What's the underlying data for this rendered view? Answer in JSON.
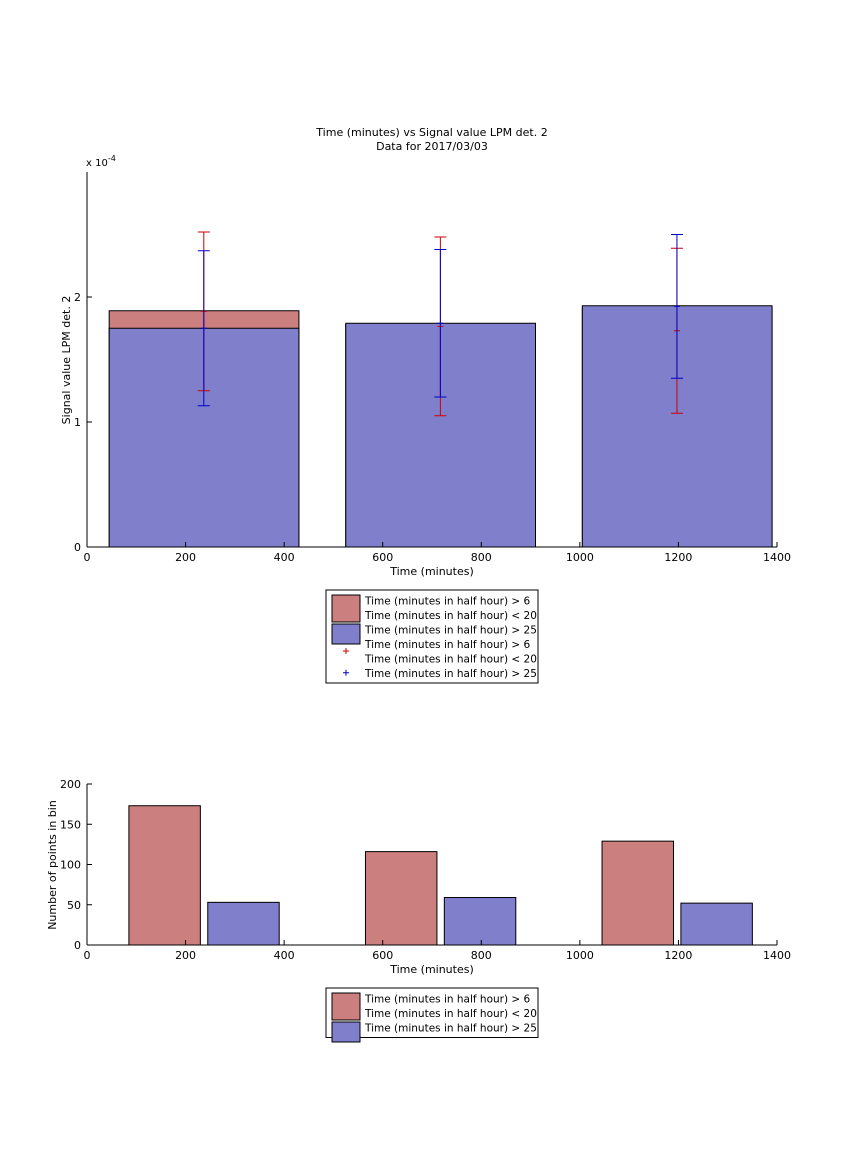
{
  "chart_data": [
    {
      "type": "bar",
      "title": "Time (minutes) vs Signal value LPM det. 2",
      "subtitle": "Data for 2017/03/03",
      "xlabel": "Time (minutes)",
      "ylabel": "Signal value LPM det. 2",
      "y_exponent_label": "x 10",
      "y_exponent_power": "-4",
      "xlim": [
        0,
        1400
      ],
      "ylim": [
        0,
        3
      ],
      "x_ticks": [
        "0",
        "200",
        "400",
        "600",
        "800",
        "1000",
        "1200",
        "1400"
      ],
      "y_ticks": [
        "0",
        "1",
        "2"
      ],
      "grid": false,
      "legend_placement": "below",
      "series": [
        {
          "name": "Time (minutes in half hour) > 6 Time (minutes in half hour) < 20",
          "color": "#cc7f7f",
          "bins": [
            {
              "x_start": 45,
              "x_end": 430,
              "value": 1.89
            },
            {
              "x_start": 525,
              "x_end": 910,
              "value": 1.78
            },
            {
              "x_start": 1005,
              "x_end": 1390,
              "value": 1.91
            }
          ]
        },
        {
          "name": "Time (minutes in half hour) > 25",
          "color": "#7f7fcc",
          "bins": [
            {
              "x_start": 45,
              "x_end": 430,
              "value": 1.75
            },
            {
              "x_start": 525,
              "x_end": 910,
              "value": 1.79
            },
            {
              "x_start": 1005,
              "x_end": 1390,
              "value": 1.93
            }
          ]
        }
      ],
      "errorbars": [
        {
          "name": "Time (minutes in half hour) > 6 Time (minutes in half hour) < 20",
          "color": "#cc0000",
          "points": [
            {
              "x": 237,
              "low": 1.25,
              "high": 2.52
            },
            {
              "x": 717,
              "low": 1.05,
              "high": 2.48
            },
            {
              "x": 1197,
              "low": 1.07,
              "high": 2.39
            }
          ]
        },
        {
          "name": "Time (minutes in half hour) > 25",
          "color": "#0000cc",
          "points": [
            {
              "x": 237,
              "low": 1.13,
              "high": 2.37
            },
            {
              "x": 717,
              "low": 1.2,
              "high": 2.38
            },
            {
              "x": 1197,
              "low": 1.35,
              "high": 2.5
            }
          ]
        }
      ],
      "legend": [
        {
          "type": "patch",
          "color": "#cc7f7f",
          "lines": [
            "Time (minutes in half hour) > 6",
            "Time (minutes in half hour) < 20"
          ]
        },
        {
          "type": "patch",
          "color": "#7f7fcc",
          "lines": [
            "Time (minutes in half hour) > 25"
          ]
        },
        {
          "type": "marker",
          "color": "#cc0000",
          "lines": [
            "Time (minutes in half hour) > 6",
            "Time (minutes in half hour) < 20"
          ]
        },
        {
          "type": "marker",
          "color": "#0000cc",
          "lines": [
            "Time (minutes in half hour) > 25"
          ]
        }
      ]
    },
    {
      "type": "bar",
      "title": "",
      "xlabel": "Time (minutes)",
      "ylabel": "Number of points in bin",
      "xlim": [
        0,
        1400
      ],
      "ylim": [
        0,
        200
      ],
      "x_ticks": [
        "0",
        "200",
        "400",
        "600",
        "800",
        "1000",
        "1200",
        "1400"
      ],
      "y_ticks": [
        "0",
        "50",
        "100",
        "150",
        "200"
      ],
      "grid": false,
      "legend_placement": "below",
      "series": [
        {
          "name": "Time (minutes in half hour) > 6 Time (minutes in half hour) < 20",
          "color": "#cc7f7f",
          "bins": [
            {
              "x_start": 85,
              "x_end": 230,
              "value": 173
            },
            {
              "x_start": 565,
              "x_end": 710,
              "value": 116
            },
            {
              "x_start": 1045,
              "x_end": 1190,
              "value": 129
            }
          ]
        },
        {
          "name": "Time (minutes in half hour) > 25",
          "color": "#7f7fcc",
          "bins": [
            {
              "x_start": 245,
              "x_end": 390,
              "value": 53
            },
            {
              "x_start": 725,
              "x_end": 870,
              "value": 59
            },
            {
              "x_start": 1205,
              "x_end": 1350,
              "value": 52
            }
          ]
        }
      ],
      "legend": [
        {
          "type": "patch",
          "color": "#cc7f7f",
          "lines": [
            "Time (minutes in half hour) > 6",
            "Time (minutes in half hour) < 20"
          ]
        },
        {
          "type": "patch",
          "color": "#7f7fcc",
          "lines": [
            "Time (minutes in half hour) > 25"
          ]
        }
      ]
    }
  ]
}
